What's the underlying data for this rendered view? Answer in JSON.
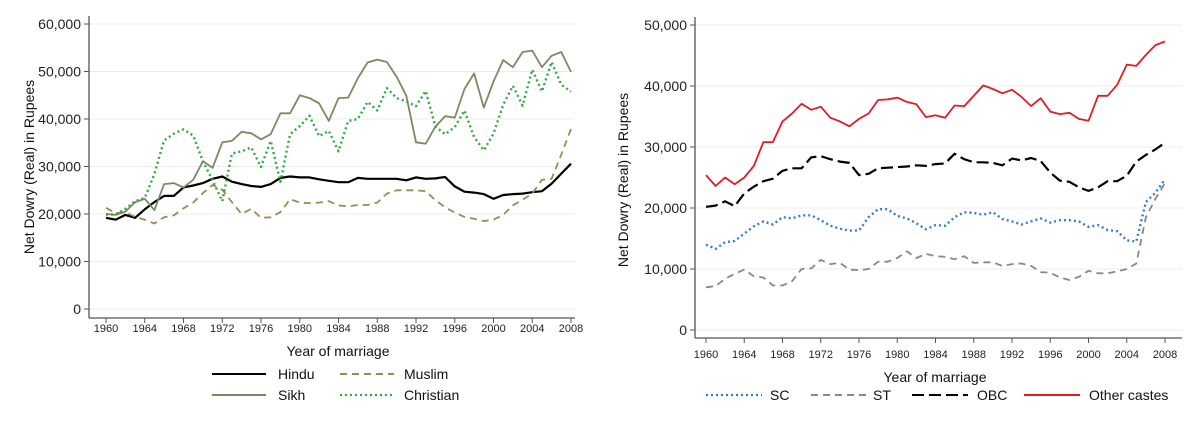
{
  "chart_data": [
    {
      "type": "line",
      "title": "",
      "xlabel": "Year of marriage",
      "ylabel": "Net Dowry (Real) in Rupees",
      "xlim": [
        1960,
        2008
      ],
      "ylim": [
        0,
        60000
      ],
      "x_ticks": [
        1960,
        1964,
        1968,
        1972,
        1976,
        1980,
        1984,
        1988,
        1992,
        1996,
        2000,
        2004,
        2008
      ],
      "y_ticks": [
        0,
        10000,
        20000,
        30000,
        40000,
        50000,
        60000
      ],
      "y_tick_labels": [
        "0",
        "10,000",
        "20,000",
        "30,000",
        "40,000",
        "50,000",
        "60,000"
      ],
      "grid": true,
      "legend_placement": "bottom",
      "x": [
        1960,
        1961,
        1962,
        1963,
        1964,
        1965,
        1966,
        1967,
        1968,
        1969,
        1970,
        1971,
        1972,
        1973,
        1974,
        1975,
        1976,
        1977,
        1978,
        1979,
        1980,
        1981,
        1982,
        1983,
        1984,
        1985,
        1986,
        1987,
        1988,
        1989,
        1990,
        1991,
        1992,
        1993,
        1994,
        1995,
        1996,
        1997,
        1998,
        1999,
        2000,
        2001,
        2002,
        2003,
        2004,
        2005,
        2006,
        2007,
        2008
      ],
      "series": [
        {
          "name": "Hindu",
          "color": "#000000",
          "style": "solid",
          "values": [
            19200,
            18800,
            19800,
            19200,
            21000,
            22500,
            23800,
            23800,
            25600,
            26000,
            26500,
            27400,
            27900,
            26800,
            26300,
            25900,
            25700,
            26300,
            27600,
            27900,
            27700,
            27700,
            27300,
            27000,
            26700,
            26700,
            27600,
            27400,
            27400,
            27400,
            27400,
            27100,
            27700,
            27400,
            27500,
            27800,
            25800,
            24700,
            24500,
            24200,
            23200,
            24000,
            24200,
            24300,
            24600,
            24800,
            26400,
            28500,
            30600
          ]
        },
        {
          "name": "Muslim",
          "color": "#9c8a55",
          "style": "dashed",
          "values": [
            21300,
            20200,
            20400,
            19400,
            18800,
            18000,
            19300,
            19700,
            21200,
            22400,
            24400,
            26100,
            25100,
            22500,
            20000,
            21100,
            19200,
            19300,
            20400,
            23100,
            22400,
            22300,
            22400,
            22700,
            21800,
            21600,
            21900,
            21900,
            22400,
            24300,
            25000,
            25000,
            25000,
            24800,
            22900,
            21400,
            20300,
            19400,
            19000,
            18500,
            18800,
            19800,
            21800,
            23000,
            24300,
            27200,
            27400,
            32500,
            37900
          ]
        },
        {
          "name": "Sikh",
          "color": "#7c8a62",
          "style": "solid",
          "values": [
            20000,
            19800,
            20500,
            22500,
            23200,
            20800,
            26300,
            26500,
            25600,
            27200,
            31100,
            29700,
            35100,
            35400,
            37300,
            37000,
            35700,
            36800,
            41200,
            41200,
            45000,
            44400,
            43300,
            39600,
            44400,
            44500,
            48600,
            51900,
            52500,
            52000,
            48900,
            44900,
            35100,
            34800,
            38400,
            40600,
            40300,
            46300,
            49600,
            42400,
            47900,
            52400,
            50900,
            54100,
            54400,
            50900,
            53300,
            54100,
            49900
          ]
        },
        {
          "name": "Christian",
          "color": "#2eaa3e",
          "style": "dotted",
          "values": [
            19900,
            19900,
            21100,
            22700,
            23400,
            28400,
            35500,
            36900,
            37800,
            36500,
            31100,
            27100,
            22700,
            32700,
            33200,
            34000,
            29900,
            35400,
            26800,
            36800,
            38500,
            40700,
            36400,
            37500,
            33200,
            39600,
            40000,
            43600,
            41800,
            46500,
            44400,
            43700,
            42700,
            45900,
            38400,
            36800,
            38300,
            41800,
            36200,
            33400,
            36900,
            43000,
            47000,
            42800,
            50400,
            45800,
            52000,
            47200,
            45800
          ]
        }
      ]
    },
    {
      "type": "line",
      "title": "",
      "xlabel": "Year of marriage",
      "ylabel": "Net Dowry (Real) in Rupees",
      "xlim": [
        1960,
        2008
      ],
      "ylim": [
        0,
        50000
      ],
      "x_ticks": [
        1960,
        1964,
        1968,
        1972,
        1976,
        1980,
        1984,
        1988,
        1992,
        1996,
        2000,
        2004,
        2008
      ],
      "y_ticks": [
        0,
        10000,
        20000,
        30000,
        40000,
        50000
      ],
      "y_tick_labels": [
        "0",
        "10,000",
        "20,000",
        "30,000",
        "40,000",
        "50,000"
      ],
      "grid": true,
      "legend_placement": "bottom",
      "x": [
        1960,
        1961,
        1962,
        1963,
        1964,
        1965,
        1966,
        1967,
        1968,
        1969,
        1970,
        1971,
        1972,
        1973,
        1974,
        1975,
        1976,
        1977,
        1978,
        1979,
        1980,
        1981,
        1982,
        1983,
        1984,
        1985,
        1986,
        1987,
        1988,
        1989,
        1990,
        1991,
        1992,
        1993,
        1994,
        1995,
        1996,
        1997,
        1998,
        1999,
        2000,
        2001,
        2002,
        2003,
        2004,
        2005,
        2006,
        2007,
        2008
      ],
      "series": [
        {
          "name": "SC",
          "color": "#2f7fcf",
          "style": "dotted",
          "values": [
            14000,
            13300,
            14400,
            14600,
            15800,
            17000,
            17800,
            17300,
            18500,
            18300,
            18800,
            18800,
            18000,
            17100,
            16600,
            16300,
            16300,
            18500,
            19800,
            19800,
            18700,
            18300,
            17500,
            16500,
            17200,
            17100,
            18500,
            19300,
            19200,
            18900,
            19300,
            18200,
            17800,
            17300,
            17800,
            18300,
            17600,
            18000,
            18000,
            17800,
            16900,
            17200,
            16400,
            16200,
            14700,
            14500,
            21000,
            22500,
            24700
          ]
        },
        {
          "name": "ST",
          "color": "#888888",
          "style": "dashed",
          "values": [
            7000,
            7200,
            8400,
            9200,
            9900,
            8800,
            8600,
            7300,
            7300,
            8000,
            10000,
            10100,
            11500,
            10800,
            11000,
            9900,
            9800,
            10000,
            11200,
            11200,
            11800,
            12900,
            11800,
            12500,
            12100,
            12000,
            11600,
            12100,
            11000,
            11100,
            11100,
            10500,
            10800,
            10900,
            10500,
            9500,
            9400,
            8600,
            8200,
            8700,
            9700,
            9300,
            9300,
            9600,
            10000,
            10900,
            18500,
            21500,
            24100
          ]
        },
        {
          "name": "OBC",
          "color": "#000000",
          "style": "longdash",
          "values": [
            20200,
            20400,
            21100,
            20300,
            22400,
            23500,
            24400,
            24800,
            26100,
            26500,
            26500,
            28300,
            28500,
            28000,
            27600,
            27400,
            25400,
            25600,
            26500,
            26600,
            26700,
            26800,
            27000,
            26900,
            27200,
            27300,
            28900,
            28000,
            27500,
            27500,
            27400,
            27000,
            28100,
            27800,
            28200,
            27700,
            25800,
            24500,
            24300,
            23400,
            22800,
            23400,
            24400,
            24400,
            25300,
            27600,
            28700,
            29600,
            30700
          ]
        },
        {
          "name": "Other castes",
          "color": "#e01c24",
          "style": "solid",
          "values": [
            25400,
            23600,
            25000,
            23900,
            25000,
            26900,
            30800,
            30800,
            34200,
            35500,
            37100,
            36100,
            36600,
            34800,
            34200,
            33400,
            34600,
            35500,
            37700,
            37800,
            38100,
            37400,
            37000,
            34900,
            35200,
            34800,
            36800,
            36700,
            38400,
            40100,
            39500,
            38800,
            39400,
            38200,
            36700,
            38000,
            35800,
            35400,
            35600,
            34600,
            34300,
            38400,
            38400,
            40200,
            43500,
            43300,
            45100,
            46700,
            47300
          ]
        }
      ]
    }
  ],
  "left_panel": {
    "ylabel": "Net Dowry (Real) in Rupees",
    "xlabel": "Year of marriage",
    "legend": [
      "Hindu",
      "Muslim",
      "Sikh",
      "Christian"
    ]
  },
  "right_panel": {
    "ylabel": "Net Dowry (Real) in Rupees",
    "xlabel": "Year of marriage",
    "legend": [
      "SC",
      "ST",
      "OBC",
      "Other castes"
    ]
  }
}
